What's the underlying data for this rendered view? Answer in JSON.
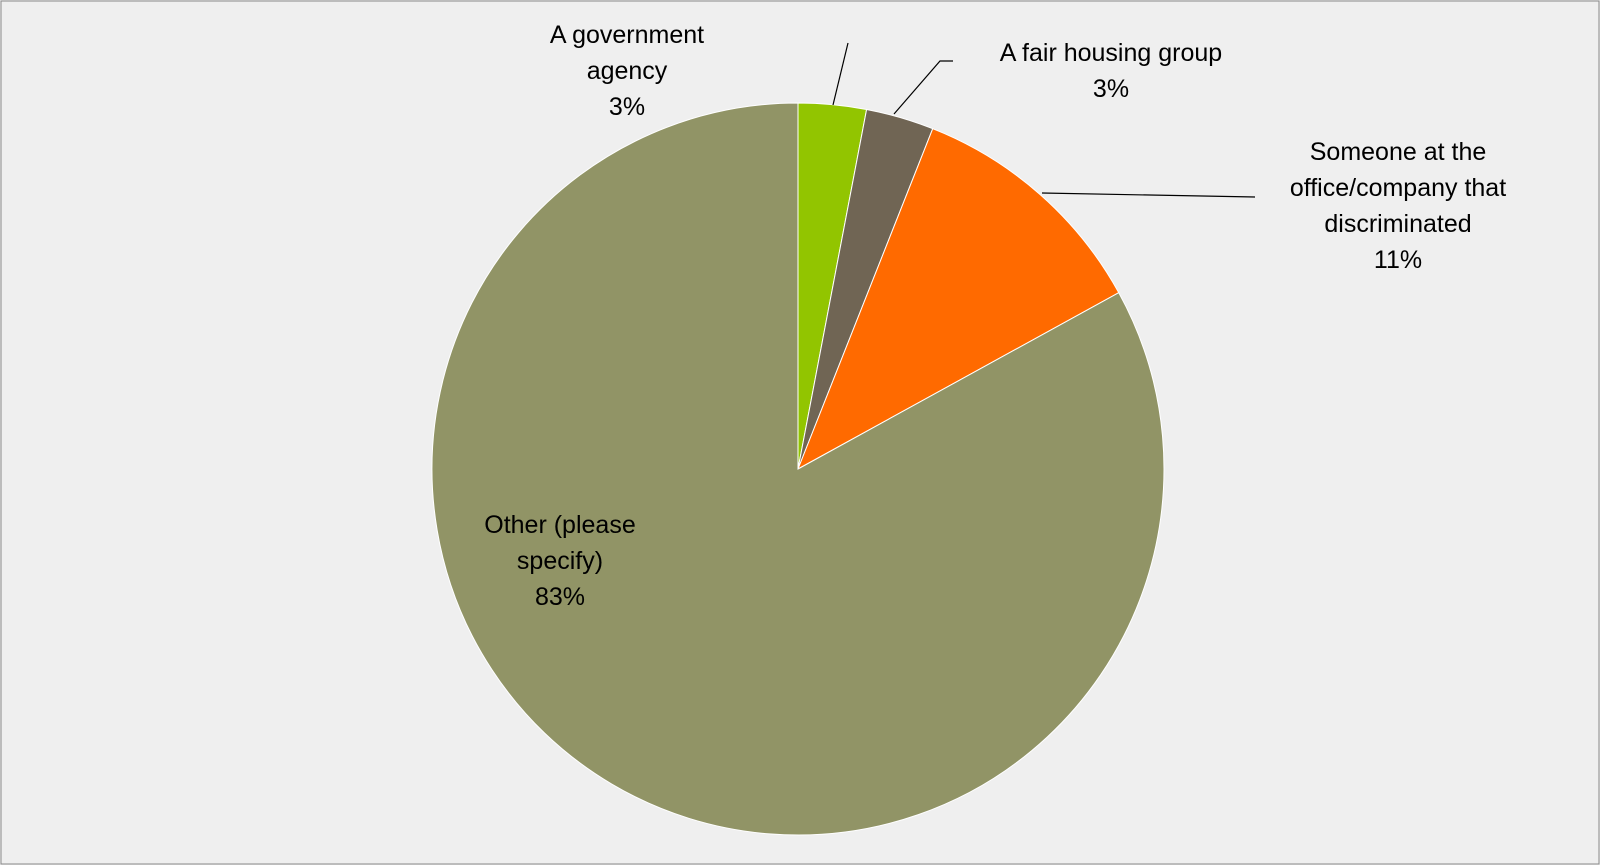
{
  "chart_data": {
    "type": "pie",
    "start_angle_deg": 0,
    "direction": "clockwise",
    "slices": [
      {
        "label": [
          "A government",
          "agency"
        ],
        "value_label": "3%",
        "value": 3,
        "color": "#92c500"
      },
      {
        "label": [
          "A fair housing group"
        ],
        "value_label": "3%",
        "value": 3,
        "color": "#706554"
      },
      {
        "label": [
          "Someone at the",
          "office/company that",
          "discriminated"
        ],
        "value_label": "11%",
        "value": 11,
        "color": "#ff6a00"
      },
      {
        "label": [
          "Other (please",
          "specify)"
        ],
        "value_label": "83%",
        "value": 83,
        "color": "#919466"
      }
    ],
    "title": "",
    "legend": "none"
  }
}
